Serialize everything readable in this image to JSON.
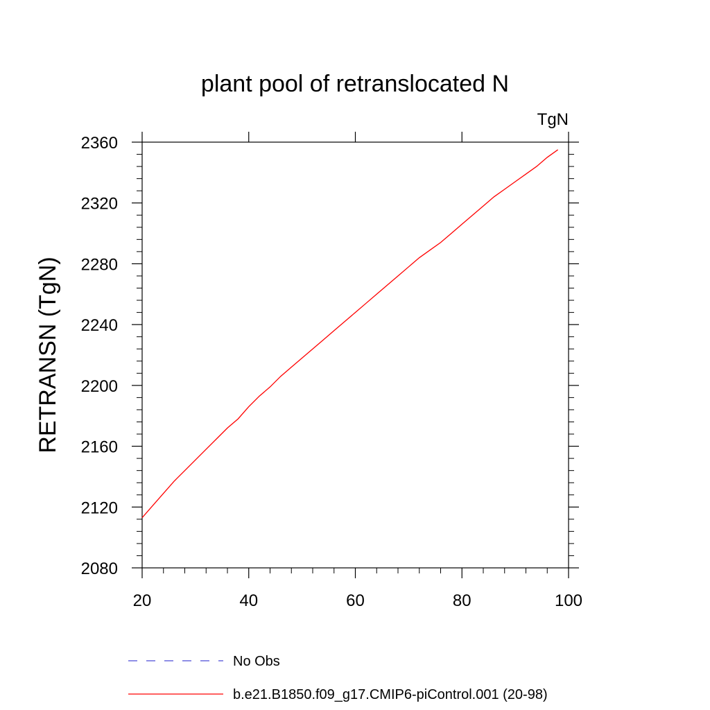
{
  "chart_data": {
    "type": "line",
    "title": "plant pool of retranslocated N",
    "units_label": "TgN",
    "ylabel": "RETRANSN  (TgN)",
    "xlabel": "",
    "xlim": [
      20,
      100
    ],
    "ylim": [
      2080,
      2360
    ],
    "x_ticks": [
      20,
      40,
      60,
      80,
      100
    ],
    "y_ticks": [
      2080,
      2120,
      2160,
      2200,
      2240,
      2280,
      2320,
      2360
    ],
    "x_tick_labels": [
      "20",
      "40",
      "60",
      "80",
      "100"
    ],
    "y_tick_labels": [
      "2080",
      "2120",
      "2160",
      "2200",
      "2240",
      "2280",
      "2320",
      "2360"
    ],
    "grid": false,
    "legend_position": "bottom",
    "series": [
      {
        "name": "No Obs",
        "color": "#4b4bd6",
        "dash": "dashed",
        "x": [],
        "y": []
      },
      {
        "name": "b.e21.B1850.f09_g17.CMIP6-piControl.001 (20-98)",
        "color": "#ff0000",
        "dash": "solid",
        "x": [
          20,
          22,
          24,
          26,
          28,
          30,
          32,
          34,
          36,
          38,
          40,
          42,
          44,
          46,
          48,
          50,
          52,
          54,
          56,
          58,
          60,
          62,
          64,
          66,
          68,
          70,
          72,
          74,
          76,
          78,
          80,
          82,
          84,
          86,
          88,
          90,
          92,
          94,
          96,
          98
        ],
        "y": [
          2113,
          2121,
          2129,
          2137,
          2144,
          2151,
          2158,
          2165,
          2172,
          2178,
          2186,
          2193,
          2199,
          2206,
          2212,
          2218,
          2224,
          2230,
          2236,
          2242,
          2248,
          2254,
          2260,
          2266,
          2272,
          2278,
          2284,
          2289,
          2294,
          2300,
          2306,
          2312,
          2318,
          2324,
          2329,
          2334,
          2339,
          2344,
          2350,
          2355
        ]
      }
    ]
  }
}
